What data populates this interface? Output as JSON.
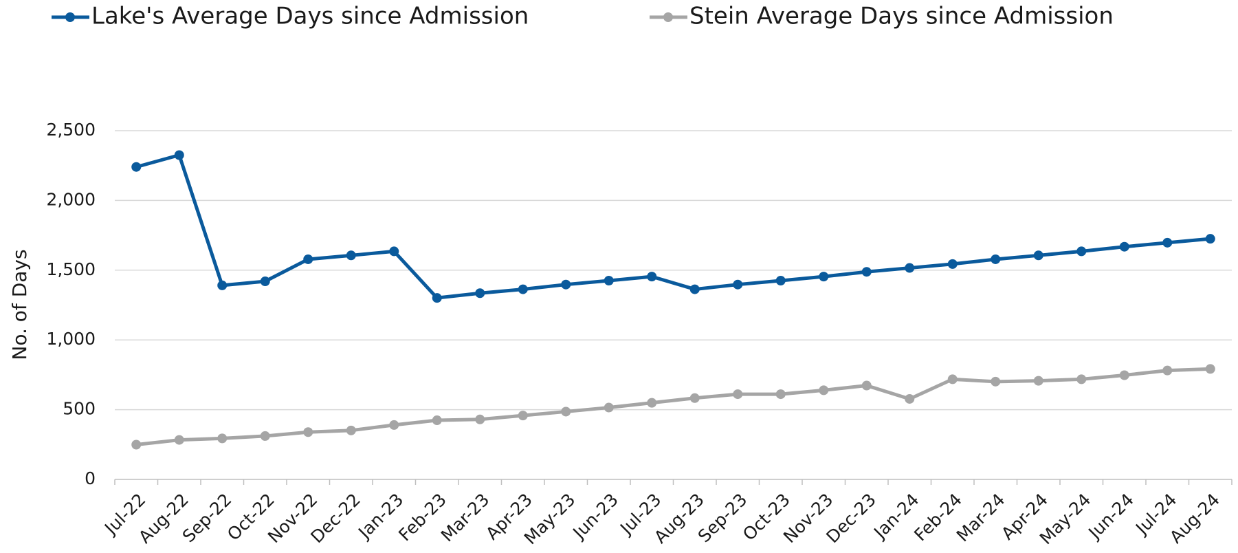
{
  "chart_data": {
    "type": "line",
    "y_label": "No. of Days",
    "categories": [
      "Jul-22",
      "Aug-22",
      "Sep-22",
      "Oct-22",
      "Nov-22",
      "Dec-22",
      "Jan-23",
      "Feb-23",
      "Mar-23",
      "Apr-23",
      "May-23",
      "Jun-23",
      "Jul-23",
      "Aug-23",
      "Sep-23",
      "Oct-23",
      "Nov-23",
      "Dec-23",
      "Jan-24",
      "Feb-24",
      "Mar-24",
      "Apr-24",
      "May-24",
      "Jun-24",
      "Jul-24",
      "Aug-24"
    ],
    "series": [
      {
        "name": "Lake's Average Days since Admission",
        "color": "#0a5a9c",
        "values": [
          2240,
          2325,
          1391,
          1420,
          1578,
          1606,
          1635,
          1301,
          1335,
          1363,
          1397,
          1425,
          1454,
          1363,
          1397,
          1425,
          1454,
          1488,
          1516,
          1544,
          1578,
          1606,
          1635,
          1668,
          1697,
          1725
        ]
      },
      {
        "name": "Stein Average Days since Admission",
        "color": "#a5a5a5",
        "values": [
          249,
          283,
          294,
          311,
          339,
          351,
          390,
          424,
          430,
          458,
          486,
          515,
          549,
          583,
          611,
          611,
          639,
          673,
          577,
          718,
          701,
          707,
          718,
          747,
          781,
          792
        ]
      }
    ],
    "ylim": [
      0,
      2500
    ],
    "yticks": [
      0,
      500,
      {
        "value": 1000,
        "label": "1,000"
      },
      {
        "value": 1500,
        "label": "1,500"
      },
      {
        "value": 2000,
        "label": "2,000"
      },
      {
        "value": 2500,
        "label": "2,500"
      }
    ],
    "grid": true,
    "legend": "top-left"
  }
}
